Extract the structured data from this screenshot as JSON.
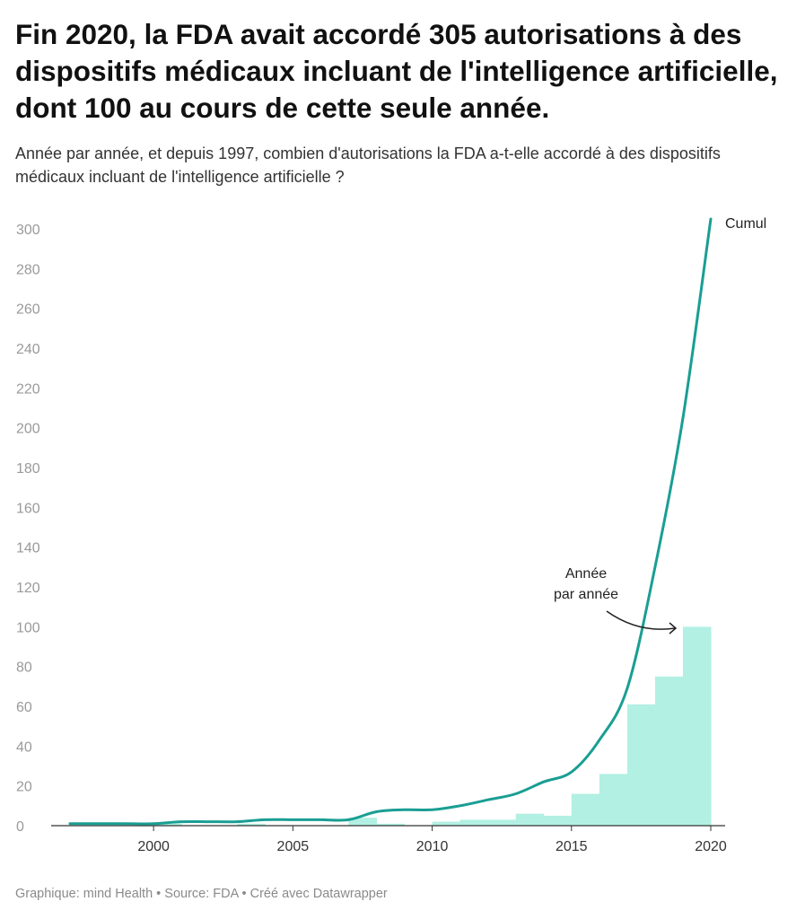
{
  "header": {
    "title": "Fin 2020, la FDA avait accordé 305 autorisations à des dispositifs médicaux incluant de l'intelligence artificielle, dont 100 au cours de cette seule année.",
    "subtitle": "Année par année, et depuis 1997, combien d'autorisations la FDA a-t-elle accordé à des dispositifs médicaux incluant de l'intelligence artificielle ?"
  },
  "footer": {
    "credit": "Graphique: mind Health • Source: FDA • Créé avec Datawrapper"
  },
  "chart_data": {
    "type": "area",
    "x": [
      1997,
      1998,
      1999,
      2000,
      2001,
      2002,
      2003,
      2004,
      2005,
      2006,
      2007,
      2008,
      2009,
      2010,
      2011,
      2012,
      2013,
      2014,
      2015,
      2016,
      2017,
      2018,
      2019,
      2020
    ],
    "series": [
      {
        "name": "Année par année",
        "kind": "step-area",
        "color": "#b2f0e3",
        "values": [
          0,
          0,
          0,
          0,
          1,
          0,
          0,
          1,
          0,
          0,
          0,
          4,
          1,
          0,
          2,
          3,
          3,
          6,
          5,
          16,
          26,
          61,
          75,
          100
        ]
      },
      {
        "name": "Cumul",
        "kind": "line",
        "color": "#1a9e93",
        "values": [
          1,
          1,
          1,
          1,
          2,
          2,
          2,
          3,
          3,
          3,
          3,
          7,
          8,
          8,
          10,
          13,
          16,
          22,
          27,
          43,
          69,
          130,
          205,
          305
        ]
      }
    ],
    "annotations": {
      "yearly_label_line1": "Année",
      "yearly_label_line2": "par année",
      "cumul_label": "Cumul"
    },
    "ylim": [
      0,
      305
    ],
    "yticks": [
      0,
      20,
      40,
      60,
      80,
      100,
      120,
      140,
      160,
      180,
      200,
      220,
      240,
      260,
      280,
      300
    ],
    "xlim": [
      1997,
      2020
    ],
    "xticks": [
      2000,
      2005,
      2010,
      2015,
      2020
    ],
    "grid": false
  }
}
